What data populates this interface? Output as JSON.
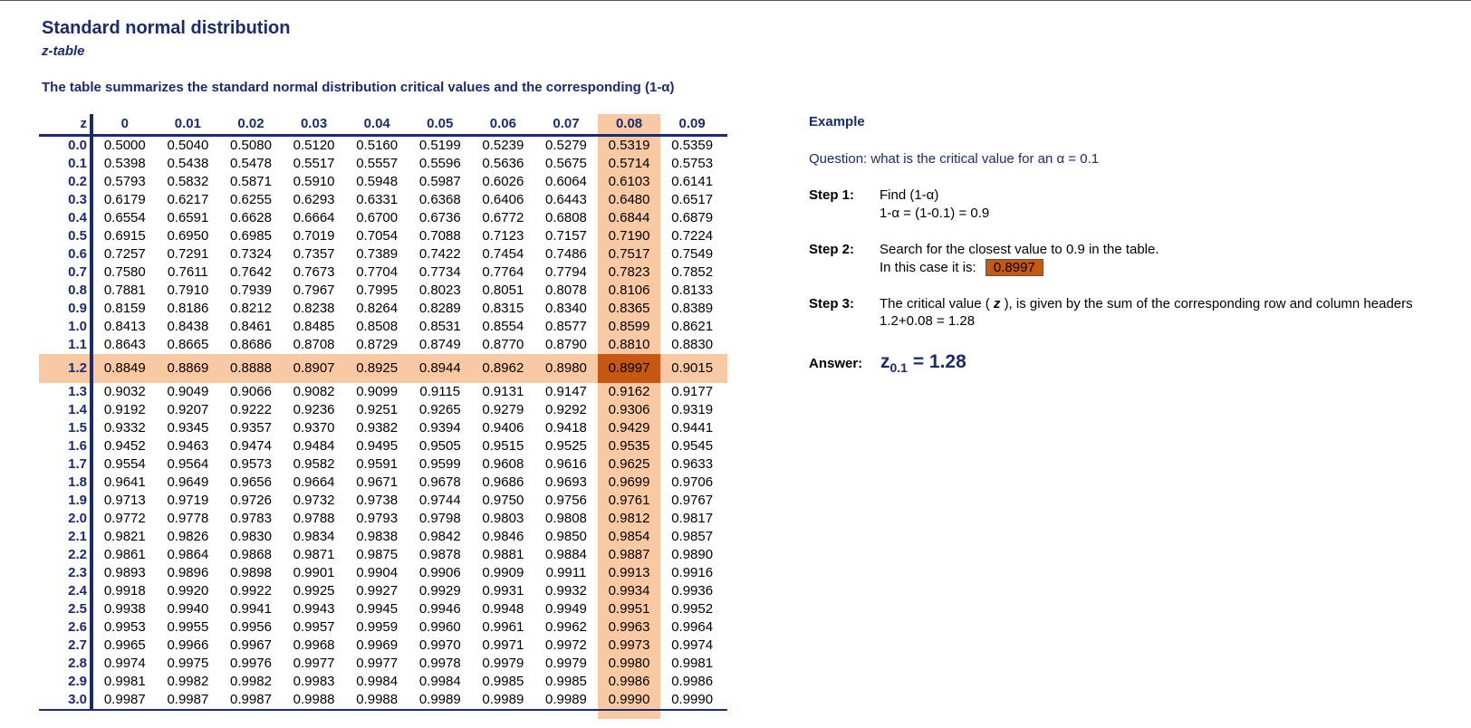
{
  "title": "Standard normal distribution",
  "subtitle": "z-table",
  "summary": "The table summarizes the standard normal distribution critical values and the corresponding (1-α)",
  "table": {
    "corner": "z",
    "columns": [
      "0",
      "0.01",
      "0.02",
      "0.03",
      "0.04",
      "0.05",
      "0.06",
      "0.07",
      "0.08",
      "0.09"
    ],
    "highlight_column": "0.08",
    "highlight_row": "1.2",
    "highlight_color": "#f9c9a4",
    "found_cell_color": "#c65811",
    "rows": [
      {
        "z": "0.0",
        "v": [
          "0.5000",
          "0.5040",
          "0.5080",
          "0.5120",
          "0.5160",
          "0.5199",
          "0.5239",
          "0.5279",
          "0.5319",
          "0.5359"
        ]
      },
      {
        "z": "0.1",
        "v": [
          "0.5398",
          "0.5438",
          "0.5478",
          "0.5517",
          "0.5557",
          "0.5596",
          "0.5636",
          "0.5675",
          "0.5714",
          "0.5753"
        ]
      },
      {
        "z": "0.2",
        "v": [
          "0.5793",
          "0.5832",
          "0.5871",
          "0.5910",
          "0.5948",
          "0.5987",
          "0.6026",
          "0.6064",
          "0.6103",
          "0.6141"
        ]
      },
      {
        "z": "0.3",
        "v": [
          "0.6179",
          "0.6217",
          "0.6255",
          "0.6293",
          "0.6331",
          "0.6368",
          "0.6406",
          "0.6443",
          "0.6480",
          "0.6517"
        ]
      },
      {
        "z": "0.4",
        "v": [
          "0.6554",
          "0.6591",
          "0.6628",
          "0.6664",
          "0.6700",
          "0.6736",
          "0.6772",
          "0.6808",
          "0.6844",
          "0.6879"
        ]
      },
      {
        "z": "0.5",
        "v": [
          "0.6915",
          "0.6950",
          "0.6985",
          "0.7019",
          "0.7054",
          "0.7088",
          "0.7123",
          "0.7157",
          "0.7190",
          "0.7224"
        ]
      },
      {
        "z": "0.6",
        "v": [
          "0.7257",
          "0.7291",
          "0.7324",
          "0.7357",
          "0.7389",
          "0.7422",
          "0.7454",
          "0.7486",
          "0.7517",
          "0.7549"
        ]
      },
      {
        "z": "0.7",
        "v": [
          "0.7580",
          "0.7611",
          "0.7642",
          "0.7673",
          "0.7704",
          "0.7734",
          "0.7764",
          "0.7794",
          "0.7823",
          "0.7852"
        ]
      },
      {
        "z": "0.8",
        "v": [
          "0.7881",
          "0.7910",
          "0.7939",
          "0.7967",
          "0.7995",
          "0.8023",
          "0.8051",
          "0.8078",
          "0.8106",
          "0.8133"
        ]
      },
      {
        "z": "0.9",
        "v": [
          "0.8159",
          "0.8186",
          "0.8212",
          "0.8238",
          "0.8264",
          "0.8289",
          "0.8315",
          "0.8340",
          "0.8365",
          "0.8389"
        ]
      },
      {
        "z": "1.0",
        "v": [
          "0.8413",
          "0.8438",
          "0.8461",
          "0.8485",
          "0.8508",
          "0.8531",
          "0.8554",
          "0.8577",
          "0.8599",
          "0.8621"
        ]
      },
      {
        "z": "1.1",
        "v": [
          "0.8643",
          "0.8665",
          "0.8686",
          "0.8708",
          "0.8729",
          "0.8749",
          "0.8770",
          "0.8790",
          "0.8810",
          "0.8830"
        ]
      },
      {
        "z": "1.2",
        "v": [
          "0.8849",
          "0.8869",
          "0.8888",
          "0.8907",
          "0.8925",
          "0.8944",
          "0.8962",
          "0.8980",
          "0.8997",
          "0.9015"
        ]
      },
      {
        "z": "1.3",
        "v": [
          "0.9032",
          "0.9049",
          "0.9066",
          "0.9082",
          "0.9099",
          "0.9115",
          "0.9131",
          "0.9147",
          "0.9162",
          "0.9177"
        ]
      },
      {
        "z": "1.4",
        "v": [
          "0.9192",
          "0.9207",
          "0.9222",
          "0.9236",
          "0.9251",
          "0.9265",
          "0.9279",
          "0.9292",
          "0.9306",
          "0.9319"
        ]
      },
      {
        "z": "1.5",
        "v": [
          "0.9332",
          "0.9345",
          "0.9357",
          "0.9370",
          "0.9382",
          "0.9394",
          "0.9406",
          "0.9418",
          "0.9429",
          "0.9441"
        ]
      },
      {
        "z": "1.6",
        "v": [
          "0.9452",
          "0.9463",
          "0.9474",
          "0.9484",
          "0.9495",
          "0.9505",
          "0.9515",
          "0.9525",
          "0.9535",
          "0.9545"
        ]
      },
      {
        "z": "1.7",
        "v": [
          "0.9554",
          "0.9564",
          "0.9573",
          "0.9582",
          "0.9591",
          "0.9599",
          "0.9608",
          "0.9616",
          "0.9625",
          "0.9633"
        ]
      },
      {
        "z": "1.8",
        "v": [
          "0.9641",
          "0.9649",
          "0.9656",
          "0.9664",
          "0.9671",
          "0.9678",
          "0.9686",
          "0.9693",
          "0.9699",
          "0.9706"
        ]
      },
      {
        "z": "1.9",
        "v": [
          "0.9713",
          "0.9719",
          "0.9726",
          "0.9732",
          "0.9738",
          "0.9744",
          "0.9750",
          "0.9756",
          "0.9761",
          "0.9767"
        ]
      },
      {
        "z": "2.0",
        "v": [
          "0.9772",
          "0.9778",
          "0.9783",
          "0.9788",
          "0.9793",
          "0.9798",
          "0.9803",
          "0.9808",
          "0.9812",
          "0.9817"
        ]
      },
      {
        "z": "2.1",
        "v": [
          "0.9821",
          "0.9826",
          "0.9830",
          "0.9834",
          "0.9838",
          "0.9842",
          "0.9846",
          "0.9850",
          "0.9854",
          "0.9857"
        ]
      },
      {
        "z": "2.2",
        "v": [
          "0.9861",
          "0.9864",
          "0.9868",
          "0.9871",
          "0.9875",
          "0.9878",
          "0.9881",
          "0.9884",
          "0.9887",
          "0.9890"
        ]
      },
      {
        "z": "2.3",
        "v": [
          "0.9893",
          "0.9896",
          "0.9898",
          "0.9901",
          "0.9904",
          "0.9906",
          "0.9909",
          "0.9911",
          "0.9913",
          "0.9916"
        ]
      },
      {
        "z": "2.4",
        "v": [
          "0.9918",
          "0.9920",
          "0.9922",
          "0.9925",
          "0.9927",
          "0.9929",
          "0.9931",
          "0.9932",
          "0.9934",
          "0.9936"
        ]
      },
      {
        "z": "2.5",
        "v": [
          "0.9938",
          "0.9940",
          "0.9941",
          "0.9943",
          "0.9945",
          "0.9946",
          "0.9948",
          "0.9949",
          "0.9951",
          "0.9952"
        ]
      },
      {
        "z": "2.6",
        "v": [
          "0.9953",
          "0.9955",
          "0.9956",
          "0.9957",
          "0.9959",
          "0.9960",
          "0.9961",
          "0.9962",
          "0.9963",
          "0.9964"
        ]
      },
      {
        "z": "2.7",
        "v": [
          "0.9965",
          "0.9966",
          "0.9967",
          "0.9968",
          "0.9969",
          "0.9970",
          "0.9971",
          "0.9972",
          "0.9973",
          "0.9974"
        ]
      },
      {
        "z": "2.8",
        "v": [
          "0.9974",
          "0.9975",
          "0.9976",
          "0.9977",
          "0.9977",
          "0.9978",
          "0.9979",
          "0.9979",
          "0.9980",
          "0.9981"
        ]
      },
      {
        "z": "2.9",
        "v": [
          "0.9981",
          "0.9982",
          "0.9982",
          "0.9983",
          "0.9984",
          "0.9984",
          "0.9985",
          "0.9985",
          "0.9986",
          "0.9986"
        ]
      },
      {
        "z": "3.0",
        "v": [
          "0.9987",
          "0.9987",
          "0.9987",
          "0.9988",
          "0.9988",
          "0.9989",
          "0.9989",
          "0.9989",
          "0.9990",
          "0.9990"
        ]
      }
    ]
  },
  "example": {
    "heading": "Example",
    "question": "Question: what is the critical value for an α = 0.1",
    "step1_label": "Step 1:",
    "step1_line1": "Find (1-α)",
    "step1_line2": "1-α = (1-0.1) = 0.9",
    "step2_label": "Step 2:",
    "step2_line1": "Search for the closest value to 0.9 in the table.",
    "step2_line2": "In this case it is:",
    "step2_value": "0.8997",
    "step3_label": "Step 3:",
    "step3_pre": "The critical value (",
    "step3_z": "z",
    "step3_post": "), is given by the sum of the corresponding row and column headers",
    "step3_line2": "1.2+0.08 = 1.28",
    "answer_label": "Answer:",
    "answer_z": "z",
    "answer_sub": "0.1",
    "answer_value": "= 1.28"
  }
}
